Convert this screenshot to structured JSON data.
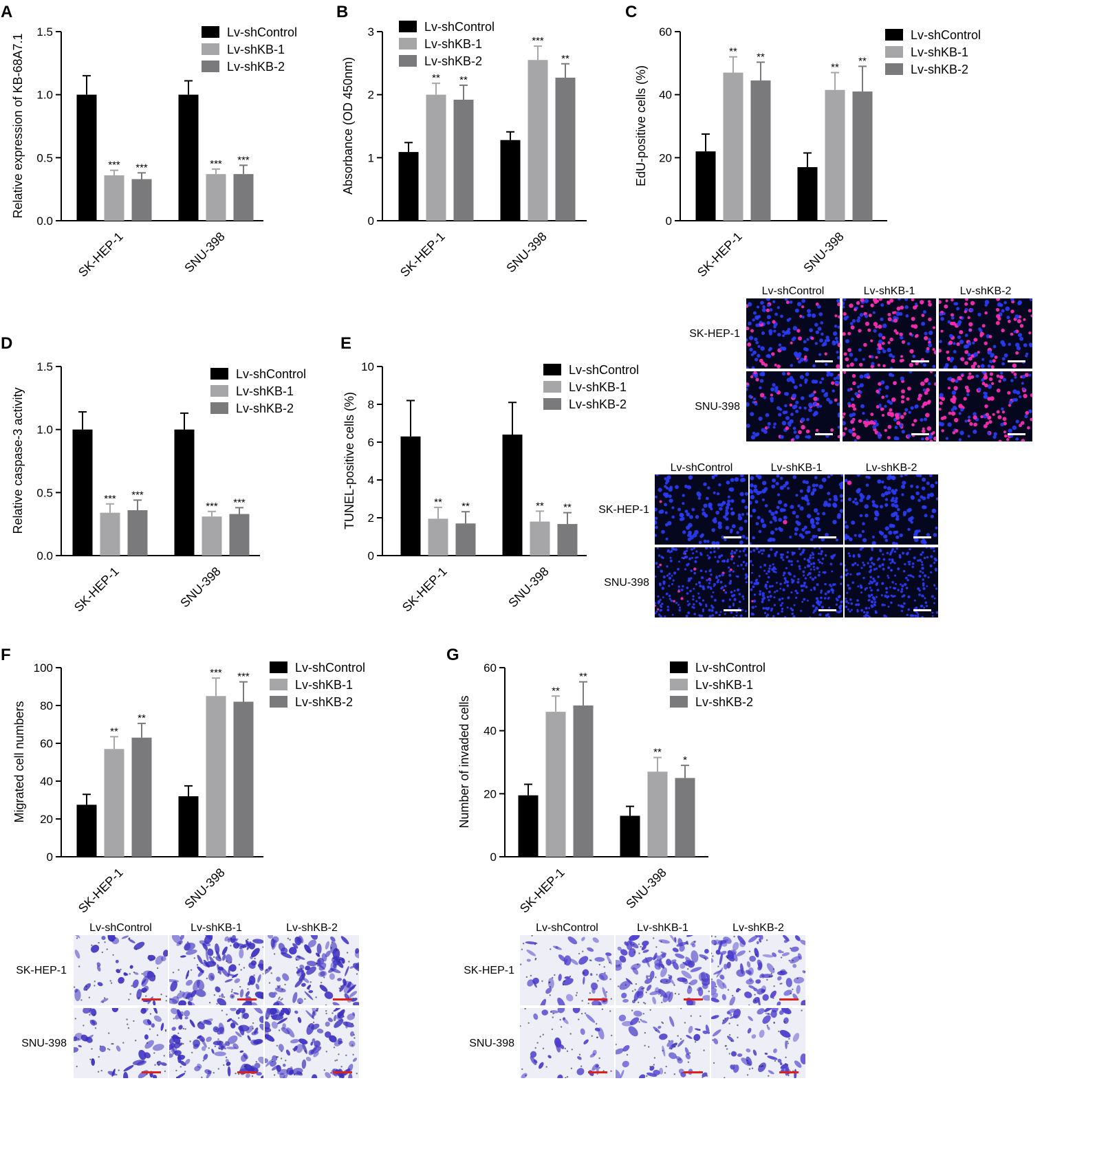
{
  "colors": {
    "Lv-shControl": "#000000",
    "Lv-shKB-1": "#a6a6a8",
    "Lv-shKB-2": "#7a7a7c"
  },
  "chart_data": [
    {
      "id": "A",
      "letter": "A",
      "type": "bar",
      "ylabel": "Relative expression of KB-68A7.1",
      "ylim": [
        0,
        1.5
      ],
      "yticks": [
        "0.0",
        "0.5",
        "1.0",
        "1.5"
      ],
      "categories": [
        "SK-HEP-1",
        "SNU-398"
      ],
      "series": [
        {
          "name": "Lv-shControl",
          "values": [
            1.0,
            1.0
          ],
          "errors": [
            0.15,
            0.11
          ],
          "sig": [
            "",
            ""
          ]
        },
        {
          "name": "Lv-shKB-1",
          "values": [
            0.36,
            0.37
          ],
          "errors": [
            0.04,
            0.04
          ],
          "sig": [
            "***",
            "***"
          ]
        },
        {
          "name": "Lv-shKB-2",
          "values": [
            0.33,
            0.37
          ],
          "errors": [
            0.05,
            0.07
          ],
          "sig": [
            "***",
            "***"
          ]
        }
      ]
    },
    {
      "id": "B",
      "letter": "B",
      "type": "bar",
      "ylabel": "Absorbance (OD 450nm)",
      "ylim": [
        0,
        3
      ],
      "yticks": [
        "0",
        "1",
        "2",
        "3"
      ],
      "categories": [
        "SK-HEP-1",
        "SNU-398"
      ],
      "series": [
        {
          "name": "Lv-shControl",
          "values": [
            1.09,
            1.28
          ],
          "errors": [
            0.15,
            0.13
          ],
          "sig": [
            "",
            ""
          ]
        },
        {
          "name": "Lv-shKB-1",
          "values": [
            2.0,
            2.55
          ],
          "errors": [
            0.18,
            0.22
          ],
          "sig": [
            "**",
            "***"
          ]
        },
        {
          "name": "Lv-shKB-2",
          "values": [
            1.92,
            2.27
          ],
          "errors": [
            0.23,
            0.22
          ],
          "sig": [
            "**",
            "**"
          ]
        }
      ]
    },
    {
      "id": "C",
      "letter": "C",
      "type": "bar",
      "ylabel": "EdU-positive cells (%)",
      "ylim": [
        0,
        60
      ],
      "yticks": [
        "0",
        "20",
        "40",
        "60"
      ],
      "categories": [
        "SK-HEP-1",
        "SNU-398"
      ],
      "series": [
        {
          "name": "Lv-shControl",
          "values": [
            22,
            17
          ],
          "errors": [
            5.5,
            4.5
          ],
          "sig": [
            "",
            ""
          ]
        },
        {
          "name": "Lv-shKB-1",
          "values": [
            47,
            41.5
          ],
          "errors": [
            5,
            5.5
          ],
          "sig": [
            "**",
            "**"
          ]
        },
        {
          "name": "Lv-shKB-2",
          "values": [
            44.5,
            41
          ],
          "errors": [
            5.8,
            8
          ],
          "sig": [
            "**",
            "**"
          ]
        }
      ]
    },
    {
      "id": "D",
      "letter": "D",
      "type": "bar",
      "ylabel": "Relative caspase-3 activity",
      "ylim": [
        0,
        1.5
      ],
      "yticks": [
        "0.0",
        "0.5",
        "1.0",
        "1.5"
      ],
      "categories": [
        "SK-HEP-1",
        "SNU-398"
      ],
      "series": [
        {
          "name": "Lv-shControl",
          "values": [
            1.0,
            1.0
          ],
          "errors": [
            0.14,
            0.13
          ],
          "sig": [
            "",
            ""
          ]
        },
        {
          "name": "Lv-shKB-1",
          "values": [
            0.34,
            0.31
          ],
          "errors": [
            0.07,
            0.04
          ],
          "sig": [
            "***",
            "***"
          ]
        },
        {
          "name": "Lv-shKB-2",
          "values": [
            0.36,
            0.33
          ],
          "errors": [
            0.08,
            0.05
          ],
          "sig": [
            "***",
            "***"
          ]
        }
      ]
    },
    {
      "id": "E",
      "letter": "E",
      "type": "bar",
      "ylabel": "TUNEL-positive cells (%)",
      "ylim": [
        0,
        10
      ],
      "yticks": [
        "0",
        "2",
        "4",
        "6",
        "8",
        "10"
      ],
      "categories": [
        "SK-HEP-1",
        "SNU-398"
      ],
      "series": [
        {
          "name": "Lv-shControl",
          "values": [
            6.3,
            6.4
          ],
          "errors": [
            1.9,
            1.7
          ],
          "sig": [
            "",
            ""
          ]
        },
        {
          "name": "Lv-shKB-1",
          "values": [
            1.95,
            1.8
          ],
          "errors": [
            0.6,
            0.55
          ],
          "sig": [
            "**",
            "**"
          ]
        },
        {
          "name": "Lv-shKB-2",
          "values": [
            1.7,
            1.67
          ],
          "errors": [
            0.62,
            0.6
          ],
          "sig": [
            "**",
            "**"
          ]
        }
      ]
    },
    {
      "id": "F",
      "letter": "F",
      "type": "bar",
      "ylabel": "Migrated cell numbers",
      "ylim": [
        0,
        100
      ],
      "yticks": [
        "0",
        "20",
        "40",
        "60",
        "80",
        "100"
      ],
      "categories": [
        "SK-HEP-1",
        "SNU-398"
      ],
      "series": [
        {
          "name": "Lv-shControl",
          "values": [
            27.5,
            32
          ],
          "errors": [
            5.5,
            5.5
          ],
          "sig": [
            "",
            ""
          ]
        },
        {
          "name": "Lv-shKB-1",
          "values": [
            57,
            85
          ],
          "errors": [
            6.5,
            9.5
          ],
          "sig": [
            "**",
            "***"
          ]
        },
        {
          "name": "Lv-shKB-2",
          "values": [
            63,
            82
          ],
          "errors": [
            7.5,
            10.5
          ],
          "sig": [
            "**",
            "***"
          ]
        }
      ]
    },
    {
      "id": "G",
      "letter": "G",
      "type": "bar",
      "ylabel": "Number of invaded cells",
      "ylim": [
        0,
        60
      ],
      "yticks": [
        "0",
        "20",
        "40",
        "60"
      ],
      "categories": [
        "SK-HEP-1",
        "SNU-398"
      ],
      "series": [
        {
          "name": "Lv-shControl",
          "values": [
            19.5,
            13
          ],
          "errors": [
            3.5,
            3
          ],
          "sig": [
            "",
            ""
          ]
        },
        {
          "name": "Lv-shKB-1",
          "values": [
            46,
            27
          ],
          "errors": [
            5,
            4.5
          ],
          "sig": [
            "**",
            "**"
          ]
        },
        {
          "name": "Lv-shKB-2",
          "values": [
            48,
            25
          ],
          "errors": [
            7.5,
            4
          ],
          "sig": [
            "**",
            "*"
          ]
        }
      ]
    }
  ],
  "micrographs": [
    {
      "id": "edu",
      "cols": [
        "Lv-shControl",
        "Lv-shKB-1",
        "Lv-shKB-2"
      ],
      "rows": [
        "SK-HEP-1",
        "SNU-398"
      ],
      "stain": "fluorescent",
      "background": "#05071f",
      "nucleus_color": "#2a3cf2",
      "positive_color": "#ff2fb4",
      "scalebar_color": "#ffffff"
    },
    {
      "id": "tunel",
      "cols": [
        "Lv-shControl",
        "Lv-shKB-1",
        "Lv-shKB-2"
      ],
      "rows": [
        "SK-HEP-1",
        "SNU-398"
      ],
      "stain": "fluorescent",
      "background": "#05071f",
      "nucleus_color": "#2a3cf2",
      "positive_color": "#ff2fb4",
      "scalebar_color": "#ffffff"
    },
    {
      "id": "migration",
      "cols": [
        "Lv-shControl",
        "Lv-shKB-1",
        "Lv-shKB-2"
      ],
      "rows": [
        "SK-HEP-1",
        "SNU-398"
      ],
      "stain": "crystal-violet",
      "background": "#eeeef6",
      "cell_color": "#3b2fc0",
      "scalebar_color": "#e0201a"
    },
    {
      "id": "invasion",
      "cols": [
        "Lv-shControl",
        "Lv-shKB-1",
        "Lv-shKB-2"
      ],
      "rows": [
        "SK-HEP-1",
        "SNU-398"
      ],
      "stain": "crystal-violet",
      "background": "#eeeef6",
      "cell_color": "#4a3ccc",
      "scalebar_color": "#e0201a"
    }
  ]
}
